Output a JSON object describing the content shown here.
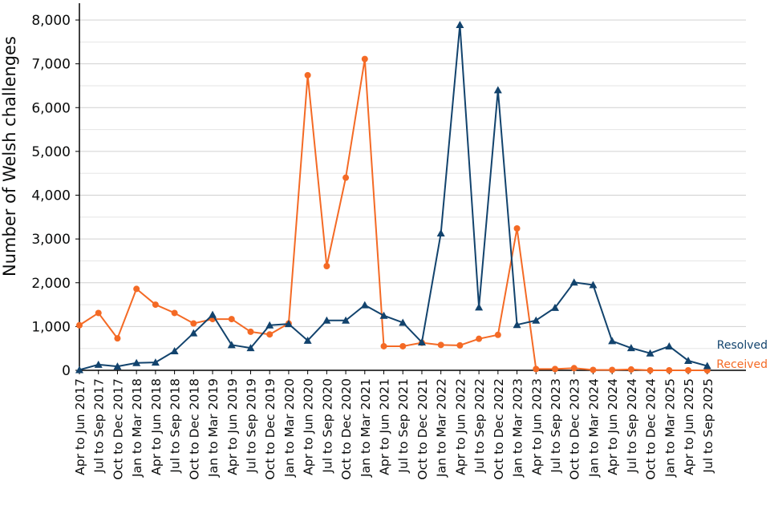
{
  "chart_data": {
    "type": "line",
    "title": "",
    "xlabel": "",
    "ylabel": "Number of Welsh challenges",
    "ylim": [
      0,
      8000
    ],
    "yticks": [
      0,
      1000,
      2000,
      3000,
      4000,
      5000,
      6000,
      7000,
      8000
    ],
    "ytick_labels": [
      "0",
      "1,000",
      "2,000",
      "3,000",
      "4,000",
      "5,000",
      "6,000",
      "7,000",
      "8,000"
    ],
    "grid": true,
    "categories": [
      "Apr to Jun 2017",
      "Jul to Sep 2017",
      "Oct to Dec 2017",
      "Jan to Mar 2018",
      "Apr to Jun 2018",
      "Jul to Sep 2018",
      "Oct to Dec 2018",
      "Jan to Mar 2019",
      "Apr to Jun 2019",
      "Jul to Sep 2019",
      "Oct to Dec 2019",
      "Jan to Mar 2020",
      "Apr to Jun 2020",
      "Jul to Sep 2020",
      "Oct to Dec 2020",
      "Jan to Mar 2021",
      "Apr to Jun 2021",
      "Jul to Sep 2021",
      "Oct to Dec 2021",
      "Jan to Mar 2022",
      "Apr to Jun 2022",
      "Jul to Sep 2022",
      "Oct to Dec 2022",
      "Jan to Mar 2023",
      "Apr to Jun 2023",
      "Jul to Sep 2023",
      "Oct to Dec 2023",
      "Jan to Mar 2024",
      "Apr to Jun 2024",
      "Jul to Sep 2024",
      "Oct to Dec 2024",
      "Jan to Mar 2025",
      "Apr to Jun 2025",
      "Jul to Sep 2025"
    ],
    "series": [
      {
        "name": "Resolved",
        "color": "#12436d",
        "marker": "triangle",
        "values": [
          10,
          130,
          90,
          170,
          180,
          440,
          850,
          1270,
          580,
          510,
          1030,
          1060,
          680,
          1140,
          1140,
          1490,
          1250,
          1090,
          640,
          3130,
          7890,
          1440,
          6400,
          1040,
          1140,
          1430,
          2010,
          1950,
          670,
          510,
          390,
          550,
          220,
          100
        ]
      },
      {
        "name": "Received",
        "color": "#f46a25",
        "marker": "circle",
        "values": [
          1030,
          1310,
          730,
          1860,
          1500,
          1310,
          1070,
          1170,
          1170,
          880,
          820,
          1070,
          6740,
          2380,
          4400,
          7110,
          550,
          550,
          630,
          580,
          570,
          720,
          810,
          3240,
          30,
          30,
          50,
          10,
          10,
          20,
          0,
          0,
          0,
          0
        ]
      }
    ]
  }
}
